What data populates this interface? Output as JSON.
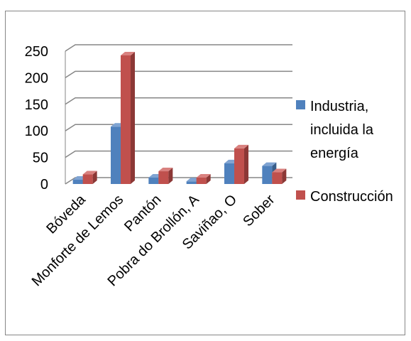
{
  "colors": {
    "industria_front": "#4F81BD",
    "industria_side": "#385D8A",
    "industria_top": "#7FA3D2",
    "construccion_front": "#C0504D",
    "construccion_side": "#8C3836",
    "construccion_top": "#D9817F",
    "gridline": "#868686",
    "text": "#000000",
    "border": "#868686"
  },
  "chart_data": {
    "type": "bar",
    "title": "",
    "xlabel": "",
    "ylabel": "",
    "categories": [
      "Bóveda",
      "Monforte de Lemos",
      "Pantón",
      "Pobra do Brollón, A",
      "Saviñao, O",
      "Sober"
    ],
    "series": [
      {
        "name": "Industria, incluida la energía",
        "values": [
          8,
          108,
          12,
          5,
          39,
          34
        ]
      },
      {
        "name": "Construcción",
        "values": [
          18,
          242,
          24,
          12,
          67,
          22
        ]
      }
    ],
    "ylim": [
      0,
      250
    ],
    "yticks": [
      "0",
      "50",
      "100",
      "150",
      "200",
      "250"
    ],
    "grid": true,
    "style": "3d-clustered-column",
    "legend_position": "right"
  },
  "legend": {
    "items": [
      {
        "lines": [
          "Industria,",
          "incluida la",
          "energía"
        ]
      },
      {
        "lines": [
          "Construcción"
        ]
      }
    ]
  }
}
